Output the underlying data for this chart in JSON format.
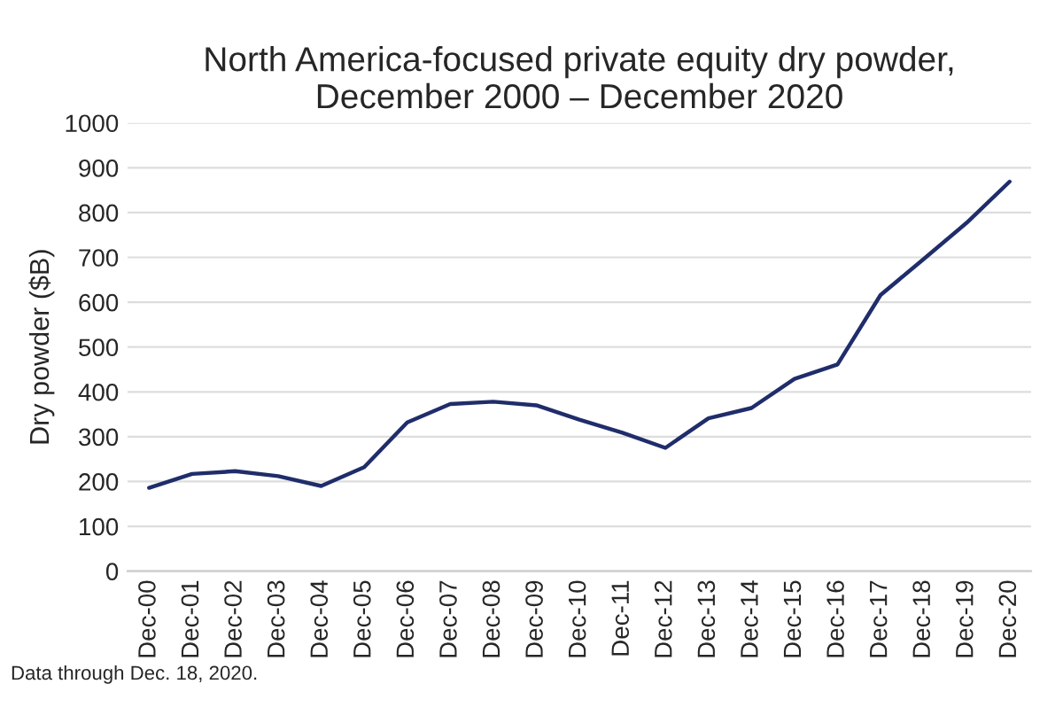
{
  "chart_data": {
    "type": "line",
    "title": "North America-focused private equity dry powder,\nDecember 2000 – December 2020",
    "ylabel": "Dry powder ($B)",
    "categories": [
      "Dec-00",
      "Dec-01",
      "Dec-02",
      "Dec-03",
      "Dec-04",
      "Dec-05",
      "Dec-06",
      "Dec-07",
      "Dec-08",
      "Dec-09",
      "Dec-10",
      "Dec-11",
      "Dec-12",
      "Dec-13",
      "Dec-14",
      "Dec-15",
      "Dec-16",
      "Dec-17",
      "Dec-18",
      "Dec-19",
      "Dec-20"
    ],
    "series": [
      {
        "color": "#1f2d6b",
        "values": [
          186,
          217,
          223,
          212,
          190,
          232,
          332,
          373,
          378,
          370,
          338,
          309,
          275,
          341,
          364,
          429,
          461,
          616,
          696,
          777,
          869
        ]
      }
    ],
    "ylim": [
      0,
      1000
    ],
    "yticks": [
      0,
      100,
      200,
      300,
      400,
      500,
      600,
      700,
      800,
      900,
      1000
    ],
    "grid": "y",
    "legend": false,
    "marker": "none",
    "line_style": "solid",
    "annotations": [
      "Data through Dec. 18, 2020."
    ]
  }
}
